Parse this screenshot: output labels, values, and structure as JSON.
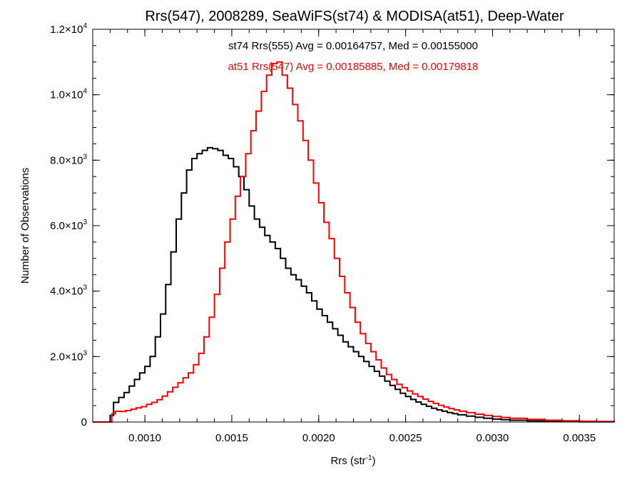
{
  "chart_data": {
    "type": "line",
    "title": "Rrs(547), 2008289, SeaWiFS(st74) & MODISA(at51), Deep-Water",
    "xlabel": "Rrs (str",
    "xlabel_sup": "-1",
    "xlabel_close": ")",
    "ylabel": "Number of Observations",
    "xlim": [
      0.0007,
      0.0037
    ],
    "ylim": [
      0,
      12000
    ],
    "grid": false,
    "xticks": [
      {
        "value": 0.001,
        "label": "0.0010"
      },
      {
        "value": 0.0015,
        "label": "0.0015"
      },
      {
        "value": 0.002,
        "label": "0.0020"
      },
      {
        "value": 0.0025,
        "label": "0.0025"
      },
      {
        "value": 0.003,
        "label": "0.0030"
      },
      {
        "value": 0.0035,
        "label": "0.0035"
      }
    ],
    "yticks": [
      {
        "value": 0,
        "mant": "0",
        "exp": ""
      },
      {
        "value": 2000,
        "mant": "2.0×10",
        "exp": "3"
      },
      {
        "value": 4000,
        "mant": "4.0×10",
        "exp": "3"
      },
      {
        "value": 6000,
        "mant": "6.0×10",
        "exp": "3"
      },
      {
        "value": 8000,
        "mant": "8.0×10",
        "exp": "3"
      },
      {
        "value": 10000,
        "mant": "1.0×10",
        "exp": "4"
      },
      {
        "value": 12000,
        "mant": "1.2×10",
        "exp": "4"
      }
    ],
    "annotations": [
      {
        "text": "st74 Rrs(555) Avg = 0.00164757, Med = 0.00155000",
        "color": "#000000"
      },
      {
        "text": "at51 Rrs(547) Avg = 0.00185885, Med = 0.00179818",
        "color": "#ff0000"
      }
    ],
    "series": [
      {
        "color": "#000000",
        "points": [
          [
            0.0007,
            0
          ],
          [
            0.00079,
            0
          ],
          [
            0.0008,
            200
          ],
          [
            0.00082,
            600
          ],
          [
            0.00085,
            750
          ],
          [
            0.00088,
            900
          ],
          [
            0.00091,
            1100
          ],
          [
            0.00094,
            1300
          ],
          [
            0.00097,
            1500
          ],
          [
            0.001,
            1700
          ],
          [
            0.00103,
            2000
          ],
          [
            0.00106,
            2600
          ],
          [
            0.00109,
            3300
          ],
          [
            0.00112,
            4200
          ],
          [
            0.00115,
            5200
          ],
          [
            0.00118,
            6200
          ],
          [
            0.00121,
            7000
          ],
          [
            0.00124,
            7700
          ],
          [
            0.00127,
            8050
          ],
          [
            0.0013,
            8200
          ],
          [
            0.00133,
            8300
          ],
          [
            0.00136,
            8380
          ],
          [
            0.00139,
            8350
          ],
          [
            0.00142,
            8300
          ],
          [
            0.00145,
            8150
          ],
          [
            0.00148,
            8050
          ],
          [
            0.00151,
            7800
          ],
          [
            0.00154,
            7500
          ],
          [
            0.00157,
            7100
          ],
          [
            0.0016,
            6600
          ],
          [
            0.00163,
            6200
          ],
          [
            0.00166,
            5950
          ],
          [
            0.00169,
            5700
          ],
          [
            0.00172,
            5500
          ],
          [
            0.00175,
            5300
          ],
          [
            0.00178,
            5000
          ],
          [
            0.00181,
            4700
          ],
          [
            0.00184,
            4500
          ],
          [
            0.00187,
            4350
          ],
          [
            0.0019,
            4150
          ],
          [
            0.00193,
            3950
          ],
          [
            0.00196,
            3700
          ],
          [
            0.00199,
            3450
          ],
          [
            0.00202,
            3250
          ],
          [
            0.00205,
            3050
          ],
          [
            0.00208,
            2850
          ],
          [
            0.00211,
            2650
          ],
          [
            0.00214,
            2450
          ],
          [
            0.00217,
            2300
          ],
          [
            0.0022,
            2150
          ],
          [
            0.00223,
            2000
          ],
          [
            0.00226,
            1850
          ],
          [
            0.00229,
            1700
          ],
          [
            0.00232,
            1550
          ],
          [
            0.00235,
            1400
          ],
          [
            0.00238,
            1250
          ],
          [
            0.00241,
            1120
          ],
          [
            0.00244,
            1000
          ],
          [
            0.00247,
            880
          ],
          [
            0.0025,
            780
          ],
          [
            0.00253,
            690
          ],
          [
            0.00256,
            610
          ],
          [
            0.00259,
            540
          ],
          [
            0.00262,
            480
          ],
          [
            0.00265,
            420
          ],
          [
            0.00268,
            370
          ],
          [
            0.00271,
            330
          ],
          [
            0.00274,
            290
          ],
          [
            0.00277,
            255
          ],
          [
            0.0028,
            220
          ],
          [
            0.00285,
            180
          ],
          [
            0.0029,
            145
          ],
          [
            0.00295,
            115
          ],
          [
            0.003,
            90
          ],
          [
            0.00305,
            70
          ],
          [
            0.0031,
            55
          ],
          [
            0.0032,
            35
          ],
          [
            0.0033,
            20
          ],
          [
            0.0034,
            12
          ],
          [
            0.0035,
            7
          ],
          [
            0.0036,
            4
          ],
          [
            0.0037,
            2
          ]
        ]
      },
      {
        "color": "#ff0000",
        "points": [
          [
            0.0007,
            0
          ],
          [
            0.0008,
            0
          ],
          [
            0.00081,
            250
          ],
          [
            0.00083,
            330
          ],
          [
            0.00086,
            320
          ],
          [
            0.00089,
            350
          ],
          [
            0.00092,
            390
          ],
          [
            0.00095,
            430
          ],
          [
            0.00098,
            470
          ],
          [
            0.00101,
            540
          ],
          [
            0.00104,
            600
          ],
          [
            0.00107,
            680
          ],
          [
            0.0011,
            790
          ],
          [
            0.00113,
            920
          ],
          [
            0.00116,
            1060
          ],
          [
            0.00119,
            1200
          ],
          [
            0.00122,
            1350
          ],
          [
            0.00125,
            1500
          ],
          [
            0.00128,
            1750
          ],
          [
            0.00131,
            2100
          ],
          [
            0.00134,
            2600
          ],
          [
            0.00137,
            3200
          ],
          [
            0.0014,
            3900
          ],
          [
            0.00143,
            4700
          ],
          [
            0.00146,
            5500
          ],
          [
            0.00149,
            6200
          ],
          [
            0.00152,
            6900
          ],
          [
            0.00155,
            7500
          ],
          [
            0.00158,
            8200
          ],
          [
            0.00161,
            8900
          ],
          [
            0.00164,
            9500
          ],
          [
            0.00167,
            10100
          ],
          [
            0.0017,
            10600
          ],
          [
            0.00173,
            10950
          ],
          [
            0.00176,
            11000
          ],
          [
            0.00179,
            10600
          ],
          [
            0.00182,
            10200
          ],
          [
            0.00185,
            9700
          ],
          [
            0.00188,
            9200
          ],
          [
            0.00191,
            8600
          ],
          [
            0.00194,
            8000
          ],
          [
            0.00197,
            7300
          ],
          [
            0.002,
            6700
          ],
          [
            0.00203,
            6100
          ],
          [
            0.00206,
            5600
          ],
          [
            0.00209,
            5000
          ],
          [
            0.00212,
            4450
          ],
          [
            0.00215,
            3950
          ],
          [
            0.00218,
            3500
          ],
          [
            0.00221,
            3050
          ],
          [
            0.00224,
            2700
          ],
          [
            0.00227,
            2400
          ],
          [
            0.0023,
            2150
          ],
          [
            0.00233,
            1900
          ],
          [
            0.00236,
            1650
          ],
          [
            0.00239,
            1450
          ],
          [
            0.00242,
            1300
          ],
          [
            0.00245,
            1150
          ],
          [
            0.00248,
            1050
          ],
          [
            0.00251,
            950
          ],
          [
            0.00254,
            860
          ],
          [
            0.00257,
            780
          ],
          [
            0.0026,
            700
          ],
          [
            0.00263,
            630
          ],
          [
            0.00266,
            570
          ],
          [
            0.00269,
            510
          ],
          [
            0.00272,
            460
          ],
          [
            0.00275,
            410
          ],
          [
            0.00278,
            370
          ],
          [
            0.00281,
            330
          ],
          [
            0.00285,
            285
          ],
          [
            0.0029,
            240
          ],
          [
            0.00295,
            200
          ],
          [
            0.003,
            170
          ],
          [
            0.00305,
            140
          ],
          [
            0.0031,
            115
          ],
          [
            0.0032,
            80
          ],
          [
            0.0033,
            55
          ],
          [
            0.0034,
            38
          ],
          [
            0.0035,
            25
          ],
          [
            0.0036,
            16
          ],
          [
            0.0037,
            10
          ]
        ]
      }
    ]
  }
}
